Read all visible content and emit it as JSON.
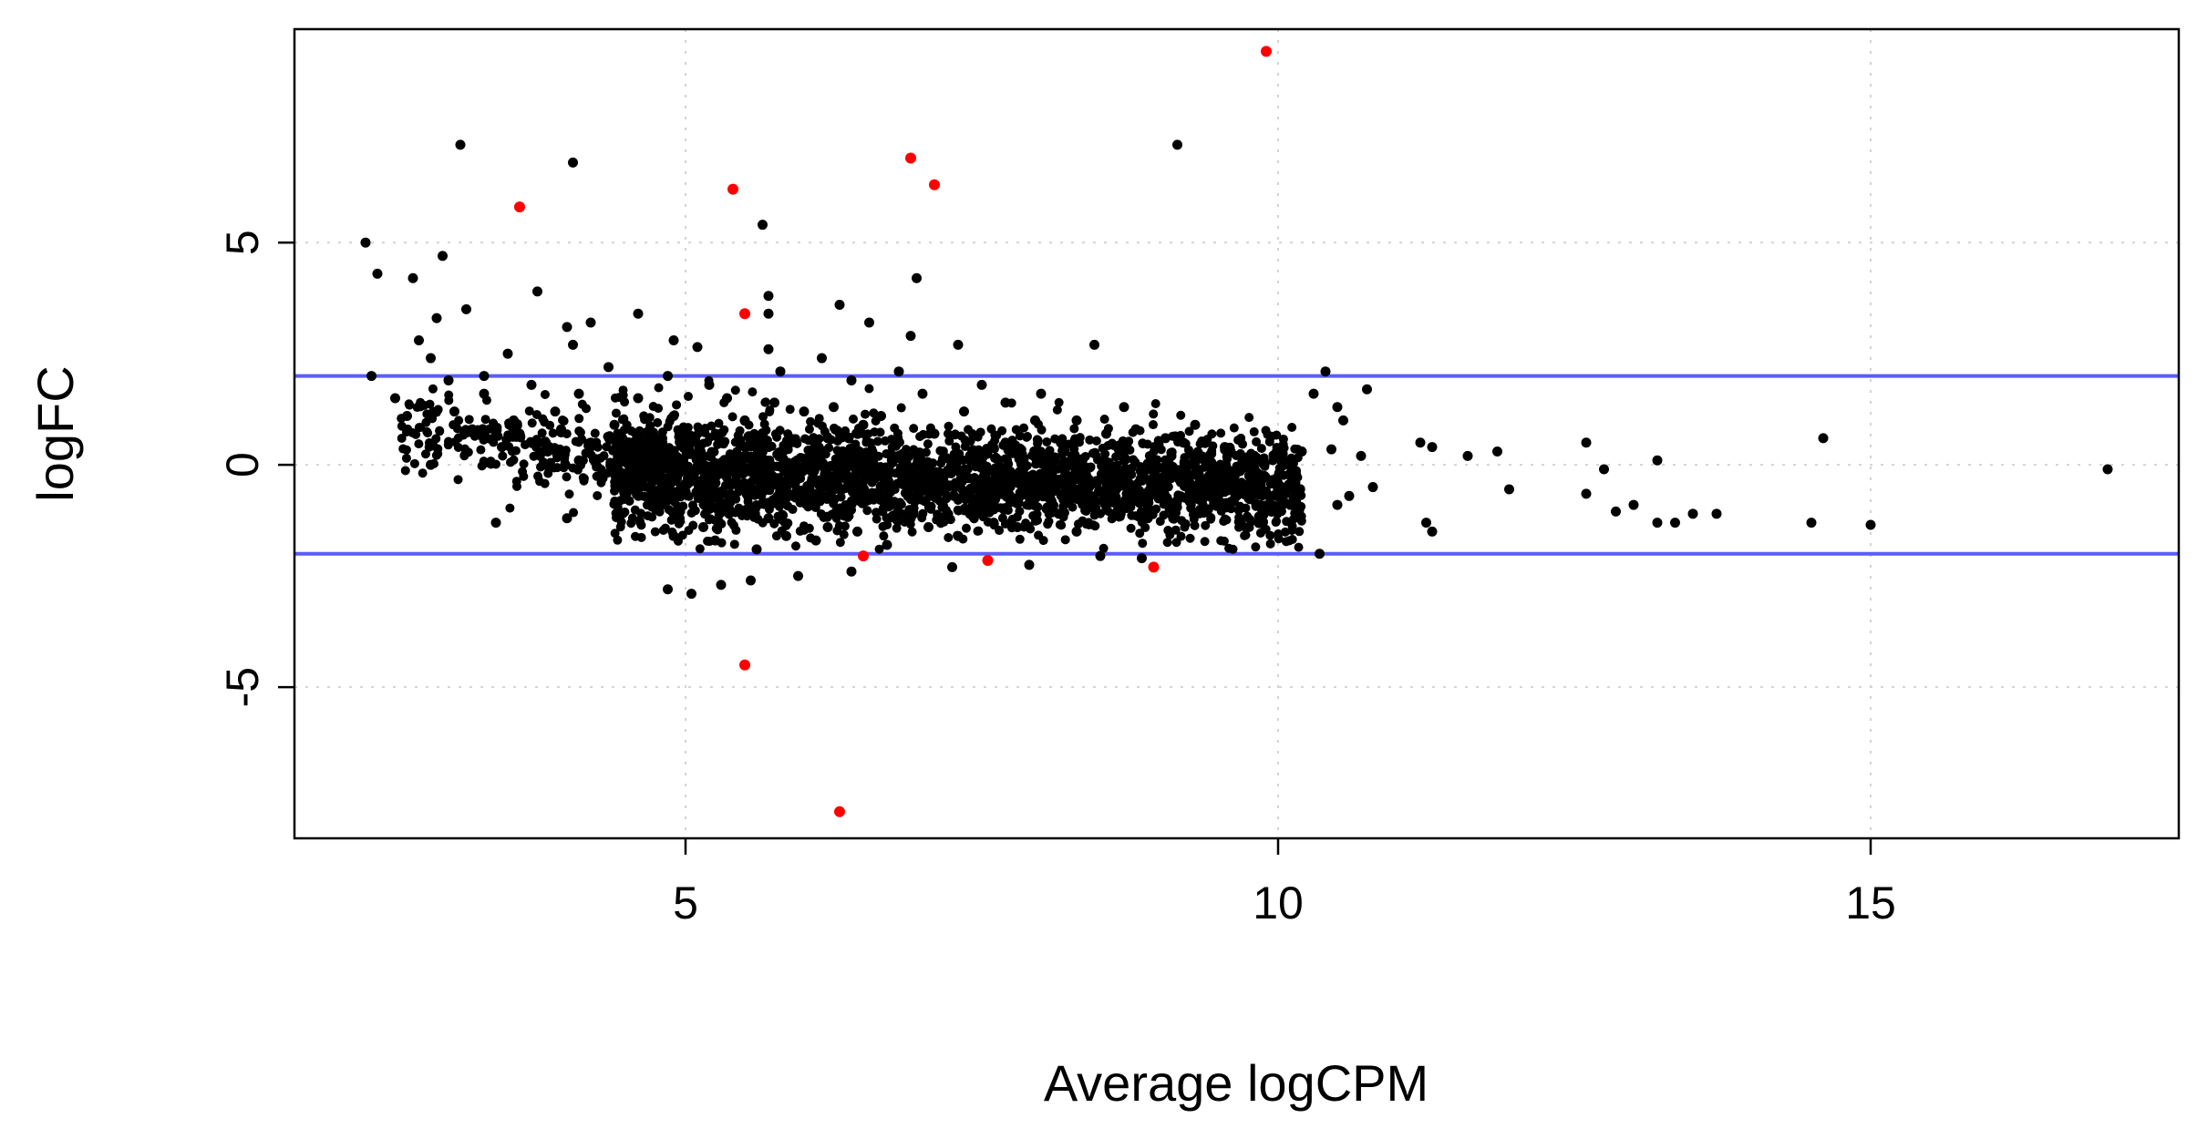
{
  "chart_data": {
    "type": "scatter",
    "title": "",
    "xlabel": "Average logCPM",
    "ylabel": "logFC",
    "xlim": [
      1.7,
      17.6
    ],
    "ylim": [
      -8.4,
      9.8
    ],
    "x_ticks": [
      5,
      10,
      15
    ],
    "y_ticks": [
      -5,
      0,
      5
    ],
    "x_tick_labels": [
      "5",
      "10",
      "15"
    ],
    "y_tick_labels": [
      "-5",
      "0",
      "5"
    ],
    "grid": true,
    "legend": "none",
    "reference_lines": {
      "y": [
        -2,
        2
      ],
      "color": "#5b5bff"
    },
    "colors": {
      "not_significant": "#000000",
      "significant": "#ff0000",
      "grid": "#d3d3d3"
    },
    "series": [
      {
        "color": "#ff0000",
        "points": [
          [
            9.9,
            9.3
          ],
          [
            3.6,
            5.8
          ],
          [
            5.4,
            6.2
          ],
          [
            6.9,
            6.9
          ],
          [
            7.1,
            6.3
          ],
          [
            5.5,
            3.4
          ],
          [
            5.5,
            -4.5
          ],
          [
            6.3,
            -7.8
          ],
          [
            8.95,
            -2.3
          ],
          [
            6.5,
            -2.05
          ],
          [
            7.55,
            -2.15
          ]
        ]
      },
      {
        "color": "#000000",
        "points": [
          [
            2.3,
            5.0
          ],
          [
            2.4,
            4.3
          ],
          [
            3.1,
            7.2
          ],
          [
            4.05,
            6.8
          ],
          [
            9.15,
            7.2
          ],
          [
            5.65,
            5.4
          ],
          [
            5.7,
            3.8
          ],
          [
            5.7,
            3.4
          ],
          [
            2.7,
            4.2
          ],
          [
            2.95,
            4.7
          ],
          [
            2.9,
            3.3
          ],
          [
            3.15,
            3.5
          ],
          [
            3.75,
            3.9
          ],
          [
            4.2,
            3.2
          ],
          [
            4.6,
            3.4
          ],
          [
            4.0,
            3.1
          ],
          [
            6.3,
            3.6
          ],
          [
            6.55,
            3.2
          ],
          [
            6.95,
            4.2
          ],
          [
            6.9,
            2.9
          ],
          [
            8.45,
            2.7
          ],
          [
            7.3,
            2.7
          ],
          [
            5.1,
            2.65
          ],
          [
            4.9,
            2.8
          ],
          [
            5.7,
            2.6
          ],
          [
            6.15,
            2.4
          ],
          [
            2.75,
            2.8
          ],
          [
            2.85,
            2.4
          ],
          [
            3.5,
            2.5
          ],
          [
            4.05,
            2.7
          ],
          [
            10.4,
            2.1
          ],
          [
            10.75,
            1.7
          ],
          [
            10.5,
            1.3
          ],
          [
            10.55,
            1.0
          ],
          [
            10.3,
            1.6
          ],
          [
            11.2,
            0.5
          ],
          [
            11.3,
            0.4
          ],
          [
            11.6,
            0.2
          ],
          [
            11.85,
            0.3
          ],
          [
            11.95,
            -0.55
          ],
          [
            11.25,
            -1.3
          ],
          [
            11.3,
            -1.5
          ],
          [
            12.6,
            0.5
          ],
          [
            12.75,
            -0.1
          ],
          [
            12.6,
            -0.65
          ],
          [
            12.85,
            -1.05
          ],
          [
            13.2,
            0.1
          ],
          [
            13.0,
            -0.9
          ],
          [
            13.2,
            -1.3
          ],
          [
            13.35,
            -1.3
          ],
          [
            13.5,
            -1.1
          ],
          [
            13.7,
            -1.1
          ],
          [
            14.5,
            -1.3
          ],
          [
            14.6,
            0.6
          ],
          [
            15.0,
            -1.35
          ],
          [
            17.0,
            -0.1
          ],
          [
            10.35,
            -2.0
          ],
          [
            10.5,
            -0.9
          ],
          [
            10.6,
            -0.7
          ],
          [
            10.8,
            -0.5
          ],
          [
            10.7,
            0.2
          ],
          [
            10.45,
            0.35
          ],
          [
            4.85,
            -2.8
          ],
          [
            5.05,
            -2.9
          ],
          [
            5.3,
            -2.7
          ],
          [
            5.55,
            -2.6
          ],
          [
            5.95,
            -2.5
          ],
          [
            6.4,
            -2.4
          ],
          [
            7.25,
            -2.3
          ],
          [
            7.9,
            -2.25
          ],
          [
            8.5,
            -2.05
          ],
          [
            8.85,
            -2.1
          ],
          [
            4.0,
            -1.2
          ],
          [
            3.4,
            -1.3
          ],
          [
            2.35,
            2.0
          ],
          [
            2.55,
            1.5
          ],
          [
            2.65,
            1.1
          ],
          [
            2.85,
            0.0
          ],
          [
            3.2,
            0.8
          ],
          [
            3.45,
            0.4
          ],
          [
            3.05,
            1.2
          ],
          [
            3.3,
            1.6
          ],
          [
            3.55,
            1.0
          ],
          [
            3.8,
            0.5
          ],
          [
            4.1,
            0.1
          ],
          [
            4.3,
            -0.3
          ],
          [
            4.6,
            -0.5
          ],
          [
            4.75,
            -1.0
          ],
          [
            4.9,
            -1.6
          ],
          [
            5.15,
            -1.4
          ],
          [
            5.6,
            -1.9
          ],
          [
            6.1,
            -1.7
          ],
          [
            6.7,
            -1.8
          ],
          [
            7.3,
            -1.6
          ],
          [
            7.8,
            -1.4
          ],
          [
            8.3,
            -1.5
          ],
          [
            8.9,
            -1.2
          ],
          [
            9.4,
            -1.0
          ],
          [
            9.85,
            -0.9
          ],
          [
            10.0,
            -0.6
          ],
          [
            9.6,
            0.3
          ],
          [
            9.2,
            0.5
          ],
          [
            8.8,
            0.8
          ],
          [
            8.3,
            1.0
          ],
          [
            7.7,
            1.4
          ],
          [
            7.0,
            1.6
          ],
          [
            6.4,
            1.9
          ],
          [
            5.8,
            2.1
          ],
          [
            5.2,
            1.8
          ],
          [
            4.6,
            1.5
          ],
          [
            4.1,
            1.6
          ],
          [
            3.7,
            1.8
          ],
          [
            8.0,
            1.6
          ],
          [
            8.7,
            1.3
          ],
          [
            9.3,
            0.9
          ],
          [
            7.5,
            1.8
          ],
          [
            6.8,
            2.1
          ],
          [
            6.0,
            1.2
          ],
          [
            5.5,
            1.0
          ],
          [
            4.9,
            1.1
          ],
          [
            4.4,
            0.9
          ],
          [
            3.9,
            1.2
          ],
          [
            3.6,
            0.7
          ],
          [
            9.8,
            0.2
          ],
          [
            10.2,
            0.3
          ],
          [
            10.1,
            -0.2
          ],
          [
            9.5,
            -0.4
          ],
          [
            9.0,
            -0.6
          ],
          [
            8.4,
            -0.8
          ],
          [
            7.9,
            -0.9
          ],
          [
            7.4,
            -1.1
          ],
          [
            6.9,
            -1.2
          ],
          [
            6.2,
            -1.4
          ],
          [
            5.7,
            -1.2
          ],
          [
            5.3,
            -0.9
          ],
          [
            5.0,
            -0.6
          ],
          [
            4.7,
            -0.2
          ],
          [
            4.5,
            0.3
          ],
          [
            4.2,
            0.5
          ],
          [
            3.95,
            0.8
          ],
          [
            6.5,
            0.9
          ],
          [
            7.1,
            0.7
          ],
          [
            7.7,
            0.5
          ],
          [
            8.2,
            0.3
          ],
          [
            8.7,
            0.1
          ],
          [
            9.1,
            0.2
          ],
          [
            6.2,
            0.6
          ],
          [
            5.7,
            0.4
          ],
          [
            5.2,
            0.2
          ],
          [
            6.6,
            -0.3
          ],
          [
            7.2,
            -0.5
          ],
          [
            7.8,
            -0.4
          ],
          [
            8.6,
            -0.3
          ],
          [
            9.3,
            -0.2
          ],
          [
            6.0,
            -0.8
          ],
          [
            5.4,
            -0.4
          ],
          [
            6.8,
            0.2
          ],
          [
            7.5,
            0.0
          ],
          [
            8.1,
            -0.1
          ],
          [
            6.4,
            0.0
          ],
          [
            5.9,
            -0.1
          ],
          [
            3.3,
            2.0
          ],
          [
            3.0,
            1.9
          ],
          [
            4.35,
            2.2
          ],
          [
            4.85,
            2.0
          ],
          [
            5.35,
            1.5
          ],
          [
            5.75,
            1.4
          ],
          [
            6.25,
            1.3
          ],
          [
            6.65,
            1.1
          ],
          [
            7.35,
            1.2
          ],
          [
            7.95,
            1.0
          ],
          [
            8.55,
            0.7
          ],
          [
            9.05,
            0.6
          ],
          [
            9.55,
            0.4
          ],
          [
            10.05,
            0.1
          ],
          [
            8.15,
            -1.1
          ],
          [
            8.65,
            -1.0
          ],
          [
            9.15,
            -0.8
          ],
          [
            9.65,
            -0.7
          ],
          [
            7.05,
            -1.4
          ],
          [
            7.6,
            -1.3
          ],
          [
            6.45,
            -1.5
          ],
          [
            5.85,
            -1.6
          ],
          [
            5.25,
            -1.7
          ],
          [
            4.95,
            -1.2
          ]
        ]
      }
    ]
  }
}
